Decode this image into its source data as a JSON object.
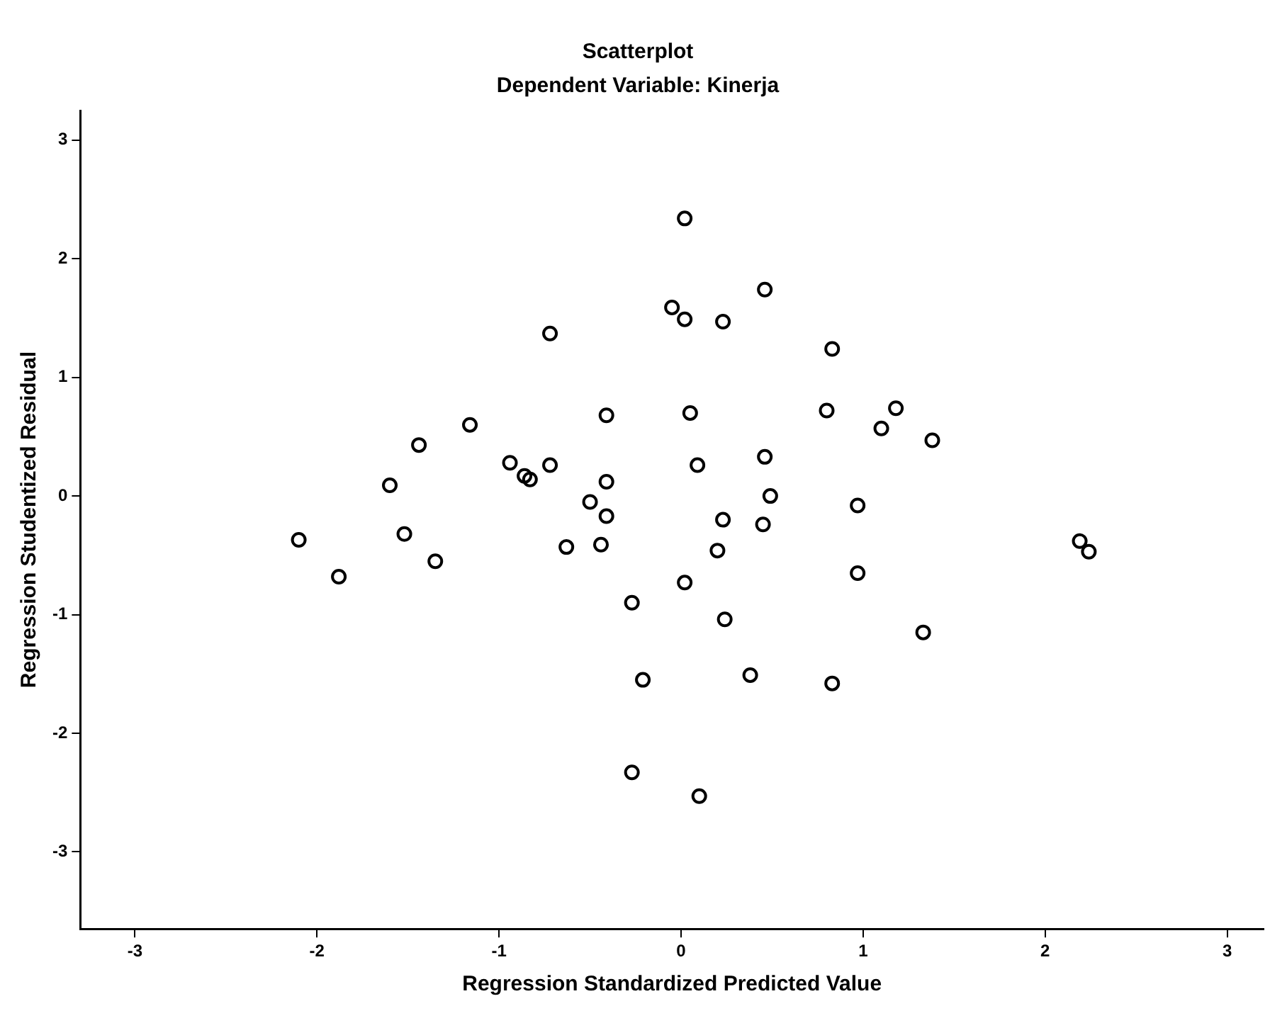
{
  "chart_data": {
    "type": "scatter",
    "title": "Scatterplot",
    "subtitle": "Dependent Variable: Kinerja",
    "xlabel": "Regression Standardized Predicted Value",
    "ylabel": "Regression Studentized Residual",
    "marker": "circle",
    "grid": false,
    "xlim": [
      -3.3,
      3.2
    ],
    "ylim": [
      -3.65,
      3.25
    ],
    "xticks": [
      -3,
      -2,
      -1,
      0,
      1,
      2,
      3
    ],
    "yticks": [
      -3,
      -2,
      -1,
      0,
      1,
      2,
      3
    ],
    "series": [
      {
        "color": "#000000",
        "x": [
          -2.1,
          -1.88,
          -1.6,
          -1.52,
          -1.44,
          -1.35,
          -1.16,
          -0.94,
          -0.86,
          -0.83,
          -0.72,
          -0.72,
          -0.63,
          -0.5,
          -0.44,
          -0.41,
          -0.41,
          -0.41,
          -0.27,
          0.02,
          -0.05,
          0.02,
          0.23,
          0.46,
          0.83,
          0.05,
          0.8,
          1.18,
          1.1,
          1.38,
          0.09,
          0.46,
          0.49,
          0.97,
          0.23,
          0.45,
          0.2,
          0.97,
          2.19,
          2.24,
          0.02,
          0.24,
          1.33,
          -0.21,
          0.38,
          0.83,
          -0.27,
          0.1
        ],
        "values": [
          -0.37,
          -0.68,
          0.09,
          -0.32,
          0.43,
          -0.55,
          0.6,
          0.28,
          0.17,
          0.14,
          1.37,
          0.26,
          -0.43,
          -0.05,
          -0.41,
          0.68,
          0.12,
          -0.17,
          -0.9,
          2.34,
          1.59,
          1.49,
          1.47,
          1.74,
          1.24,
          0.7,
          0.72,
          0.74,
          0.57,
          0.47,
          0.26,
          0.33,
          0.0,
          -0.08,
          -0.2,
          -0.24,
          -0.46,
          -0.65,
          -0.38,
          -0.47,
          -0.73,
          -1.04,
          -1.15,
          -1.55,
          -1.51,
          -1.58,
          -2.33,
          -2.53
        ]
      }
    ]
  }
}
